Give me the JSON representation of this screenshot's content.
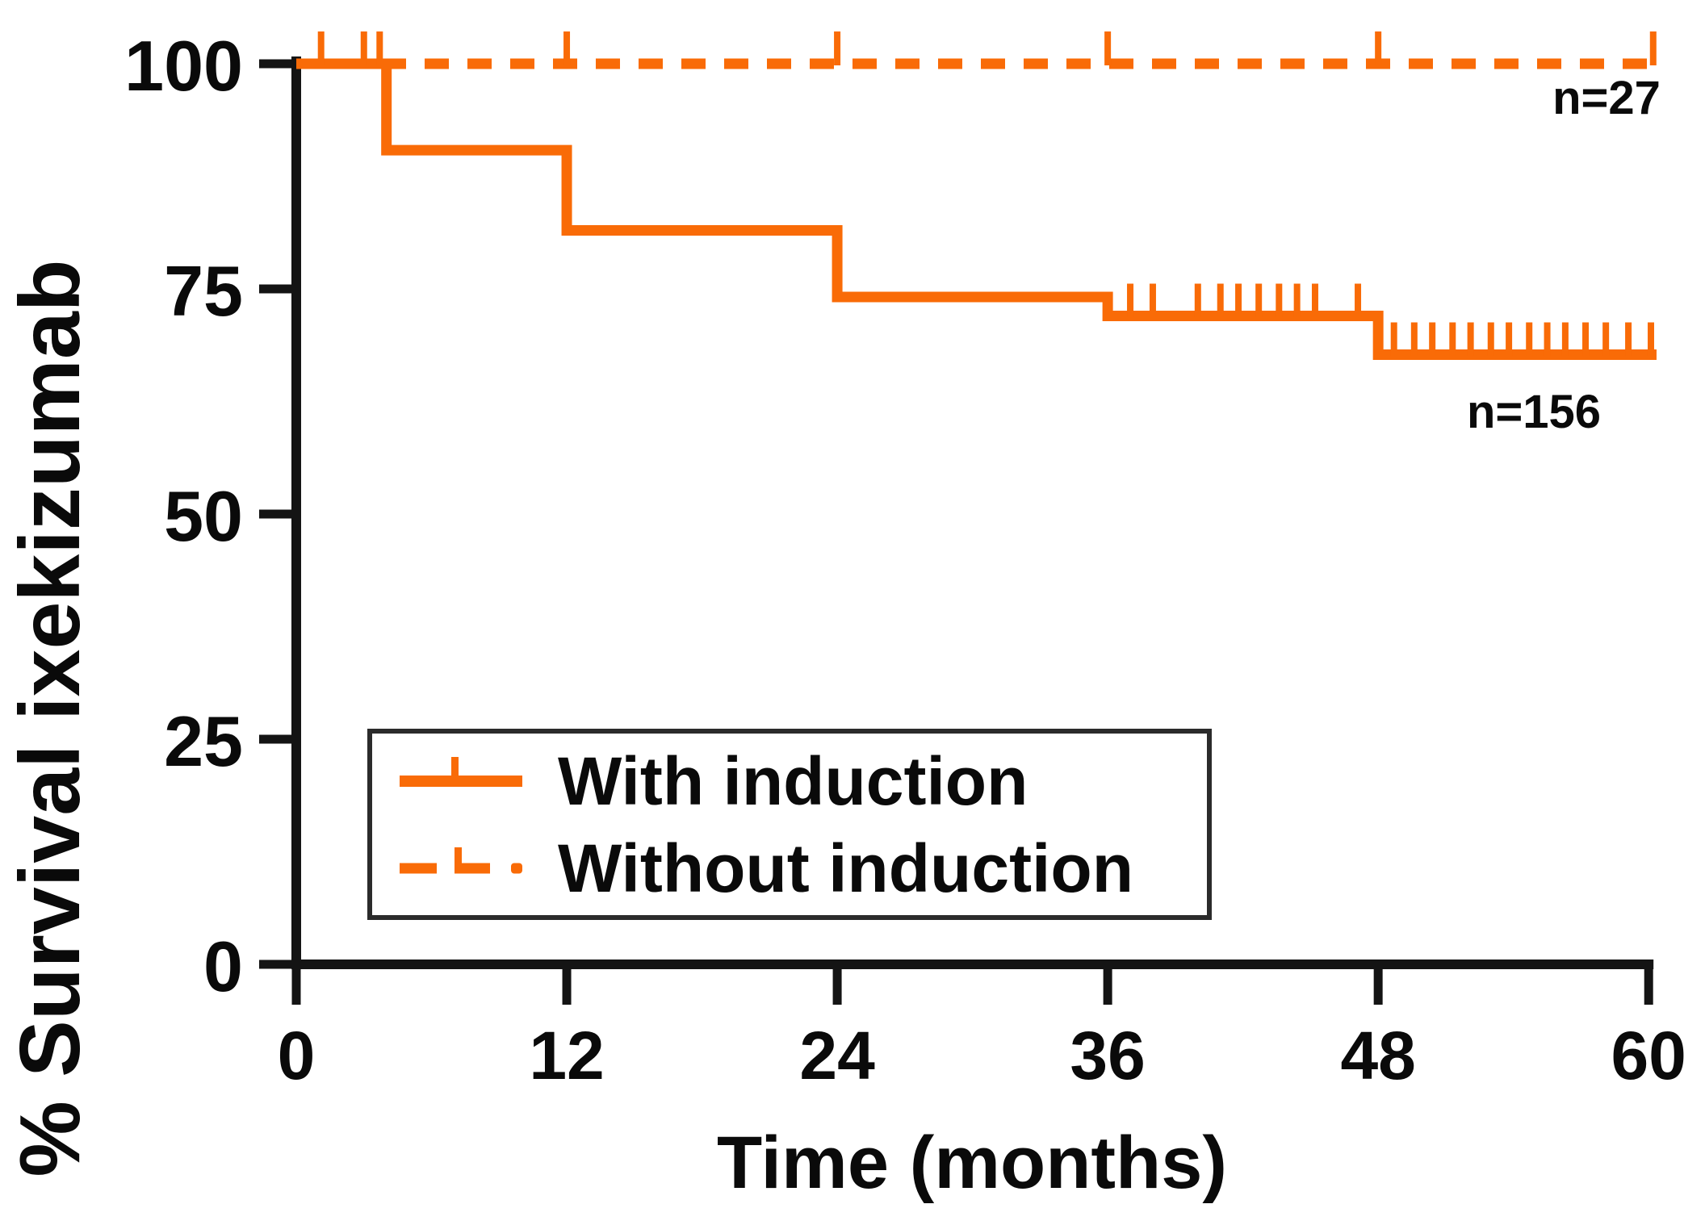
{
  "figure": {
    "colors": {
      "curve_orange": "#F96B07",
      "axis_black": "#141414",
      "text_black": "#0a0a0a",
      "legend_border": "#2b2b2b",
      "background": "#ffffff"
    }
  },
  "chart_data": {
    "type": "line",
    "subtype": "kaplan-meier-step",
    "title": "",
    "xlabel": "Time (months)",
    "ylabel": "% Survival ixekizumab",
    "xlim": [
      0,
      60
    ],
    "ylim": [
      0,
      100
    ],
    "x_ticks": [
      0,
      12,
      24,
      36,
      48,
      60
    ],
    "y_ticks": [
      0,
      25,
      50,
      75,
      100
    ],
    "grid": false,
    "legend_position": "lower left",
    "series": [
      {
        "name": "With induction",
        "n_label": "n=156",
        "line_style": "solid",
        "steps": [
          [
            0,
            100
          ],
          [
            4,
            100
          ],
          [
            4,
            90.4
          ],
          [
            12,
            90.4
          ],
          [
            12,
            81.5
          ],
          [
            24,
            81.5
          ],
          [
            24,
            74.1
          ],
          [
            36,
            74.1
          ],
          [
            36,
            72.0
          ],
          [
            48,
            72.0
          ],
          [
            48,
            67.7
          ],
          [
            60.35,
            67.7
          ]
        ],
        "censor_marks": [
          [
            1.1,
            100
          ],
          [
            3.0,
            100
          ],
          [
            3.7,
            100
          ],
          [
            37,
            72.0
          ],
          [
            38,
            72.0
          ],
          [
            40,
            72.0
          ],
          [
            41,
            72.0
          ],
          [
            41.8,
            72.0
          ],
          [
            42.7,
            72.0
          ],
          [
            43.6,
            72.0
          ],
          [
            44.4,
            72.0
          ],
          [
            45.2,
            72.0
          ],
          [
            47.1,
            72.0
          ],
          [
            48.7,
            67.7
          ],
          [
            49.6,
            67.7
          ],
          [
            50.4,
            67.7
          ],
          [
            51.3,
            67.7
          ],
          [
            52.1,
            67.7
          ],
          [
            53.0,
            67.7
          ],
          [
            53.8,
            67.7
          ],
          [
            54.7,
            67.7
          ],
          [
            55.5,
            67.7
          ],
          [
            56.3,
            67.7
          ],
          [
            57.2,
            67.7
          ],
          [
            58.1,
            67.7
          ],
          [
            59.1,
            67.7
          ],
          [
            60.1,
            67.7
          ]
        ]
      },
      {
        "name": "Without induction",
        "n_label": "n=27",
        "line_style": "dashed",
        "steps": [
          [
            0,
            100
          ],
          [
            60.3,
            100
          ]
        ],
        "censor_marks": [
          [
            12,
            100
          ],
          [
            24,
            100
          ],
          [
            36,
            100
          ],
          [
            48,
            100
          ],
          [
            60.2,
            100
          ]
        ]
      }
    ]
  },
  "legend": {
    "items": [
      {
        "label": "With induction",
        "style": "solid"
      },
      {
        "label": "Without induction",
        "style": "dashed"
      }
    ]
  },
  "annotations": {
    "n_without": "n=27",
    "n_with": "n=156"
  }
}
